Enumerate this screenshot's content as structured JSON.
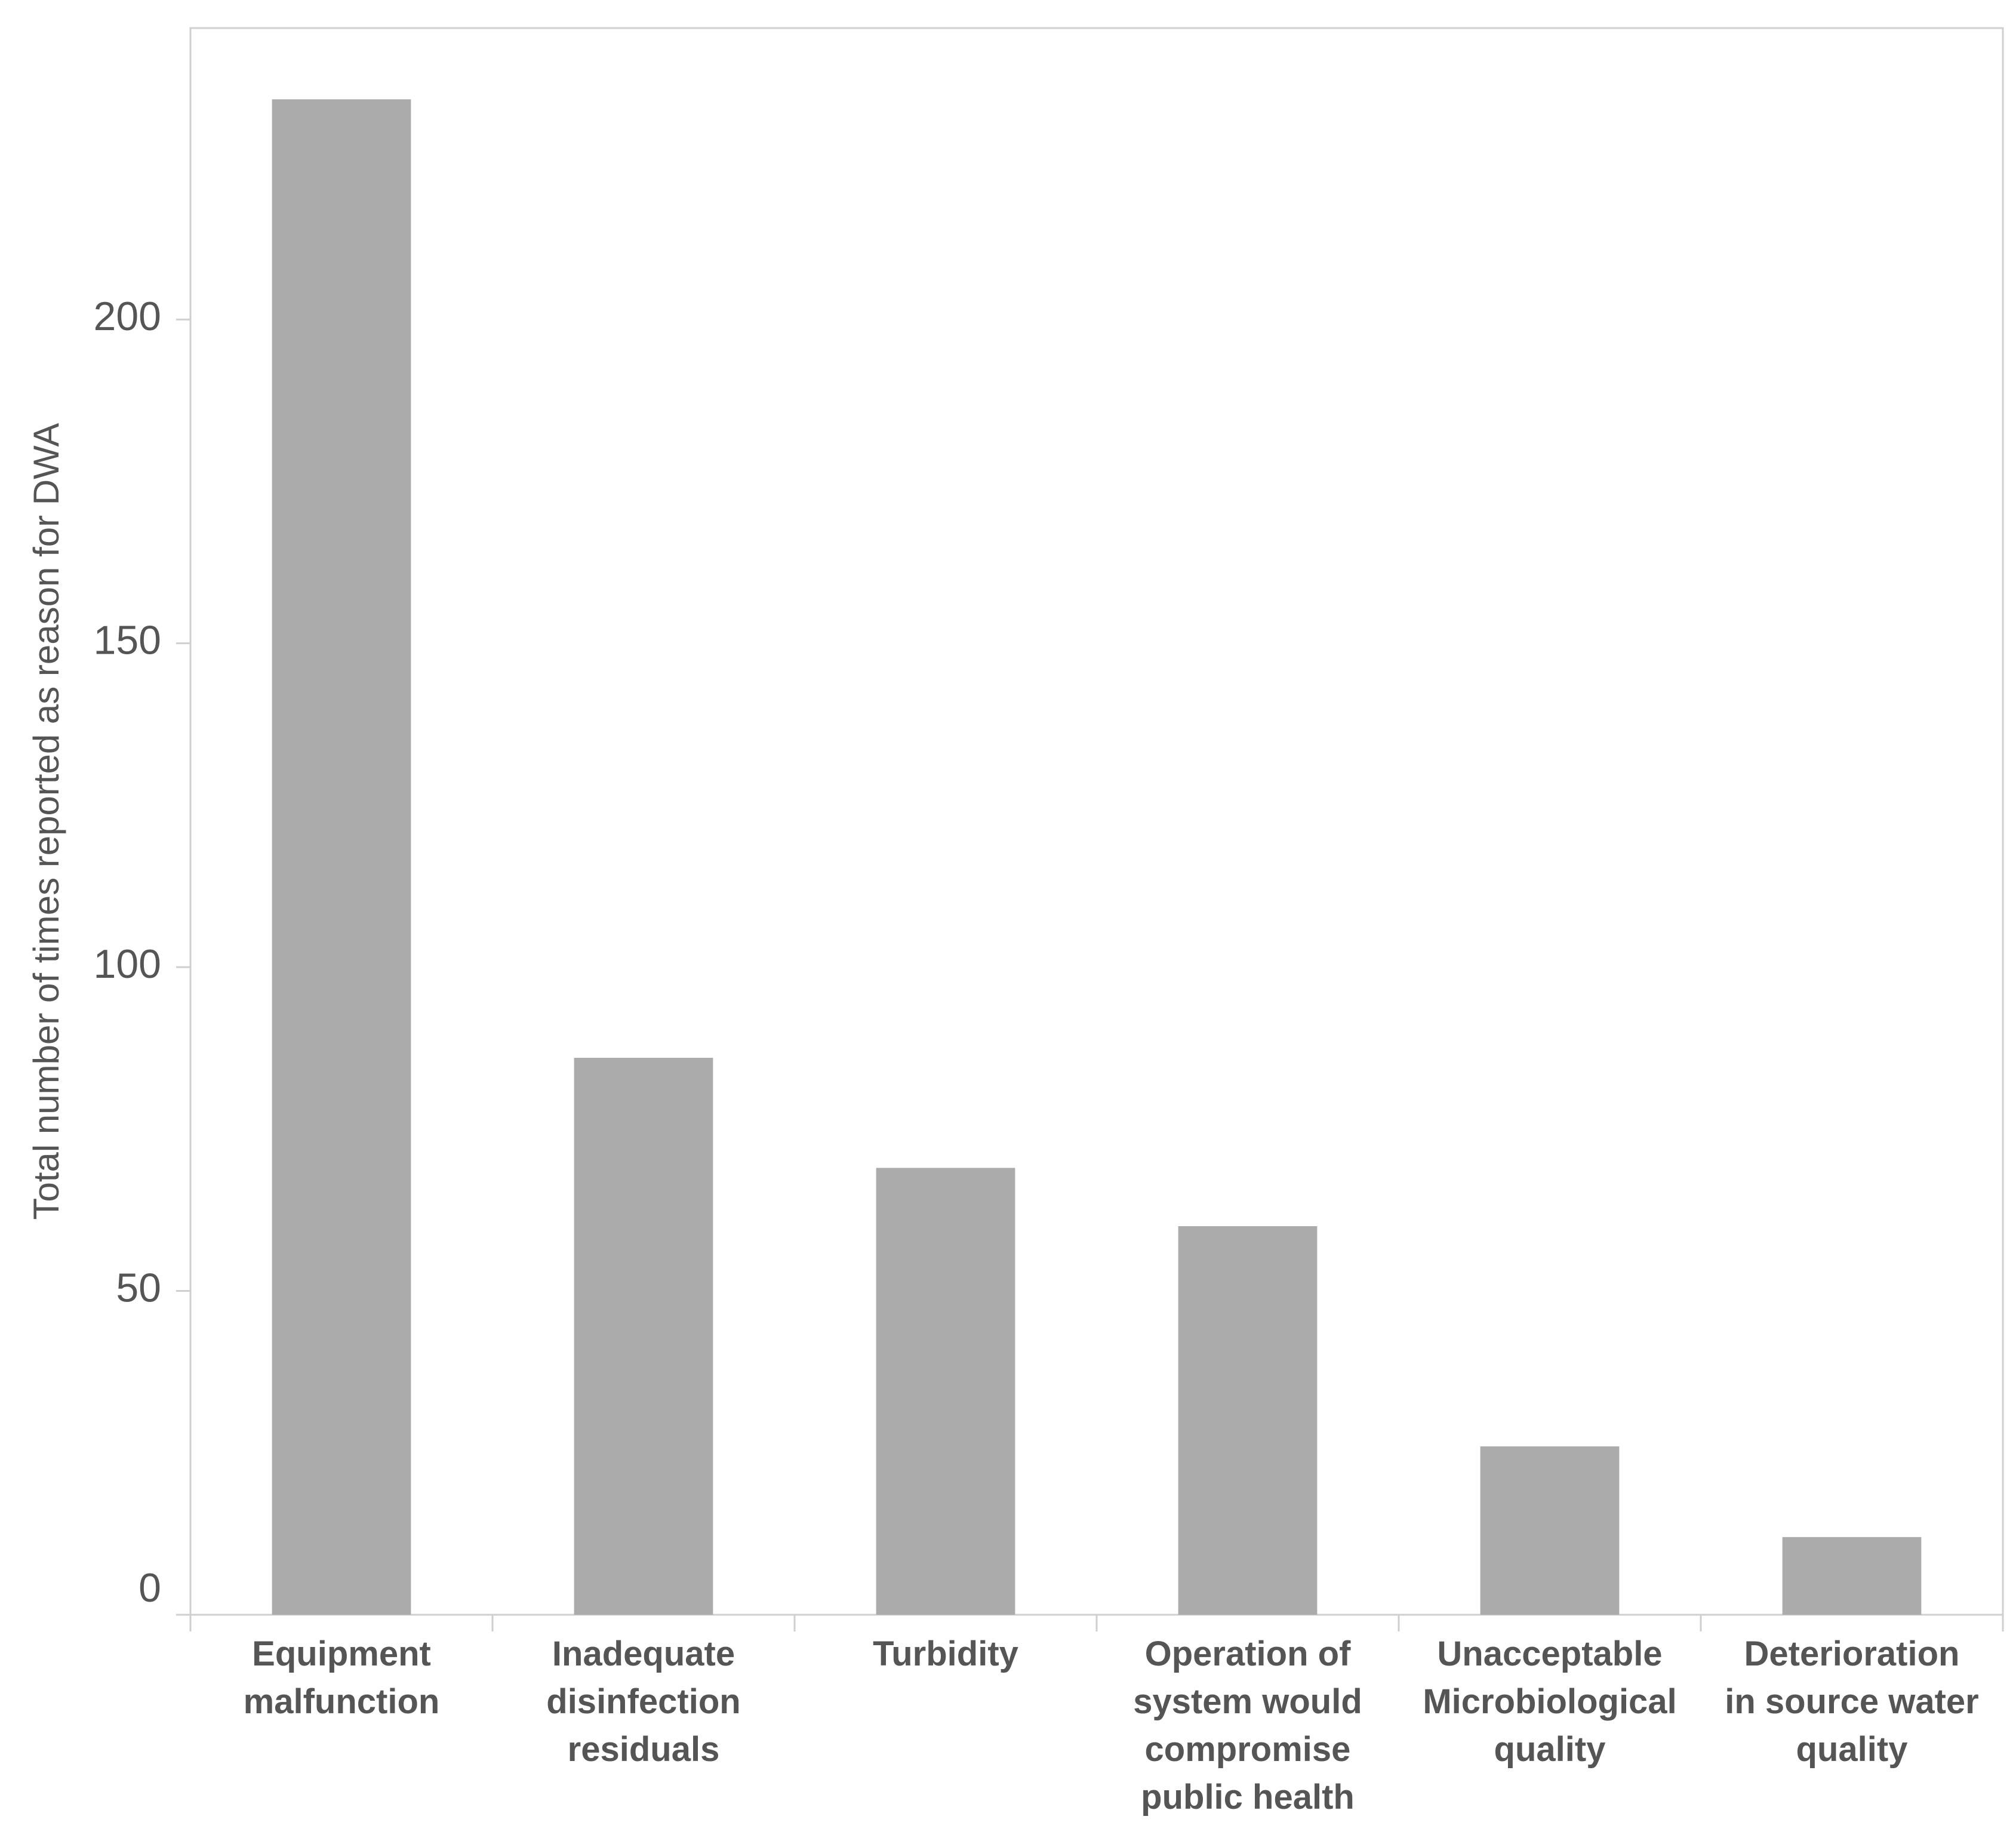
{
  "chart_data": {
    "type": "bar",
    "y_label": "Total number of times reported as reason for DWA",
    "categories": [
      "Equipment\nmalfunction",
      "Inadequate\ndisinfection\nresiduals",
      "Turbidity",
      "Operation of\nsystem would\ncompromise\npublic health",
      "Unacceptable\nMicrobiological\nquality",
      "Deterioration\nin source water\nquality"
    ],
    "values": [
      234,
      86,
      69,
      60,
      26,
      12
    ],
    "color": "#ababab",
    "ylim": [
      0,
      245
    ],
    "yticks": [
      0,
      50,
      100,
      150,
      200
    ],
    "grid": false
  }
}
